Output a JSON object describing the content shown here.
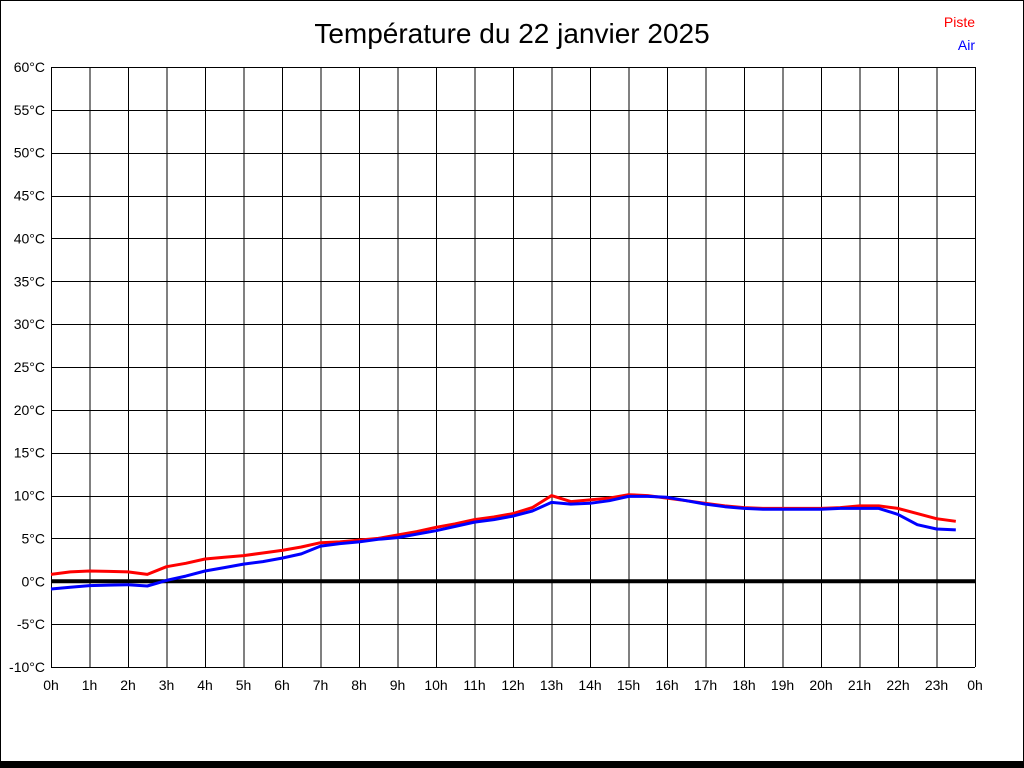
{
  "page": {
    "background": "#ffffff",
    "border_color": "#000000"
  },
  "chart_data": {
    "type": "line",
    "title": "Température du 22 janvier 2025",
    "xlabel": "",
    "ylabel": "",
    "xlim": [
      0,
      24
    ],
    "ylim": [
      -10,
      60
    ],
    "grid": true,
    "grid_color": "#000000",
    "legend_position": "top-right",
    "y_tick_values": [
      60,
      55,
      50,
      45,
      40,
      35,
      30,
      25,
      20,
      15,
      10,
      5,
      0,
      -5,
      -10
    ],
    "y_tick_labels": [
      "60°C",
      "55°C",
      "50°C",
      "45°C",
      "40°C",
      "35°C",
      "30°C",
      "25°C",
      "20°C",
      "15°C",
      "10°C",
      "5°C",
      "0°C",
      "-5°C",
      "-10°C"
    ],
    "x_tick_values": [
      0,
      1,
      2,
      3,
      4,
      5,
      6,
      7,
      8,
      9,
      10,
      11,
      12,
      13,
      14,
      15,
      16,
      17,
      18,
      19,
      20,
      21,
      22,
      23,
      24
    ],
    "x_tick_labels": [
      "0h",
      "1h",
      "2h",
      "3h",
      "4h",
      "5h",
      "6h",
      "7h",
      "8h",
      "9h",
      "10h",
      "11h",
      "12h",
      "13h",
      "14h",
      "15h",
      "16h",
      "17h",
      "18h",
      "19h",
      "20h",
      "21h",
      "22h",
      "23h",
      "0h"
    ],
    "zero_line": {
      "value": 0,
      "color": "#000000",
      "width": 4
    },
    "x": [
      0,
      0.5,
      1,
      1.5,
      2,
      2.5,
      3,
      3.5,
      4,
      4.5,
      5,
      5.5,
      6,
      6.5,
      7,
      7.5,
      8,
      8.5,
      9,
      9.5,
      10,
      10.5,
      11,
      11.5,
      12,
      12.5,
      13,
      13.5,
      14,
      14.5,
      15,
      15.5,
      16,
      16.5,
      17,
      17.5,
      18,
      18.5,
      19,
      19.5,
      20,
      20.5,
      21,
      21.5,
      22,
      22.5,
      23,
      23.5
    ],
    "series": [
      {
        "name": "Piste",
        "color": "#ff0000",
        "values": [
          0.8,
          1.1,
          1.2,
          1.15,
          1.1,
          0.8,
          1.7,
          2.1,
          2.6,
          2.8,
          3.0,
          3.3,
          3.6,
          4.0,
          4.5,
          4.6,
          4.8,
          5.0,
          5.4,
          5.8,
          6.3,
          6.7,
          7.2,
          7.5,
          7.9,
          8.6,
          10.0,
          9.3,
          9.5,
          9.7,
          10.1,
          10.0,
          9.7,
          9.4,
          9.1,
          8.8,
          8.6,
          8.5,
          8.5,
          8.5,
          8.5,
          8.6,
          8.8,
          8.8,
          8.5,
          7.9,
          7.3,
          7.0
        ]
      },
      {
        "name": "Air",
        "color": "#0000ff",
        "values": [
          -0.9,
          -0.7,
          -0.5,
          -0.45,
          -0.4,
          -0.55,
          0.1,
          0.6,
          1.2,
          1.6,
          2.0,
          2.3,
          2.7,
          3.2,
          4.1,
          4.4,
          4.6,
          4.9,
          5.1,
          5.5,
          5.9,
          6.4,
          6.9,
          7.2,
          7.6,
          8.2,
          9.2,
          9.0,
          9.1,
          9.4,
          9.9,
          9.9,
          9.8,
          9.4,
          9.0,
          8.7,
          8.5,
          8.4,
          8.4,
          8.4,
          8.4,
          8.5,
          8.5,
          8.5,
          7.8,
          6.6,
          6.1,
          6.0
        ]
      }
    ]
  }
}
